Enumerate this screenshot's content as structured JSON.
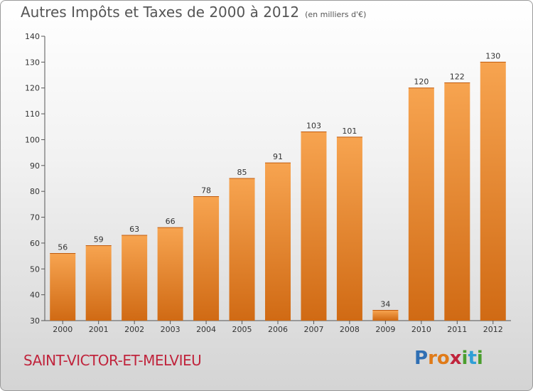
{
  "title": "Autres Impôts et Taxes de 2000 à 2012",
  "subtitle": "(en milliers d'€)",
  "place": "SAINT-VICTOR-ET-MELVIEU",
  "logo": {
    "text": "Proxiti",
    "letters": [
      {
        "ch": "P",
        "color": "#2f6fb4"
      },
      {
        "ch": "r",
        "color": "#e07b19"
      },
      {
        "ch": "o",
        "color": "#e07b19"
      },
      {
        "ch": "x",
        "color": "#c0243c"
      },
      {
        "ch": "i",
        "color": "#4a9e2e"
      },
      {
        "ch": "t",
        "color": "#2f9fd6"
      },
      {
        "ch": "i",
        "color": "#4a9e2e"
      }
    ]
  },
  "chart_data": {
    "type": "bar",
    "categories": [
      "2000",
      "2001",
      "2002",
      "2003",
      "2004",
      "2005",
      "2006",
      "2007",
      "2008",
      "2009",
      "2010",
      "2011",
      "2012"
    ],
    "values": [
      56,
      59,
      63,
      66,
      78,
      85,
      91,
      103,
      101,
      34,
      120,
      122,
      130
    ],
    "value_labels": [
      "56",
      "59",
      "63",
      "66",
      "78",
      "85",
      "91",
      "103",
      "101",
      "34",
      "120",
      "122",
      "130"
    ],
    "title": "Autres Impôts et Taxes de 2000 à 2012",
    "ylim": [
      30,
      140
    ],
    "yticks": [
      30,
      40,
      50,
      60,
      70,
      80,
      90,
      100,
      110,
      120,
      130,
      140
    ],
    "grid": false,
    "bar_color": "#f08c30"
  }
}
